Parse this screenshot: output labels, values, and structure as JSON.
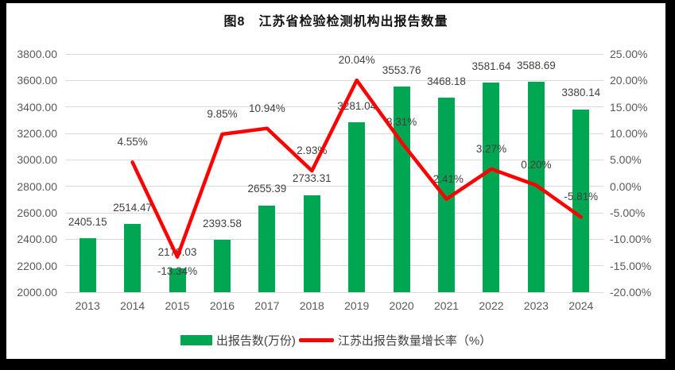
{
  "title": "图8　江苏省检验检测机构出报告数量",
  "colors": {
    "bar": "#00A651",
    "line": "#FE0000",
    "grid": "#D9D9D9",
    "axis_text": "#595959",
    "label_text": "#404040",
    "frame": "#000000"
  },
  "legend": {
    "items": [
      {
        "swatch": "bar",
        "label": "出报告数(万份)"
      },
      {
        "swatch": "line",
        "label": "江苏出报告数量增长率（%）"
      }
    ]
  },
  "chart_data": {
    "type": "combo-bar-line",
    "title": "图8　江苏省检验检测机构出报告数量",
    "categories": [
      "2013",
      "2014",
      "2015",
      "2016",
      "2017",
      "2018",
      "2019",
      "2020",
      "2021",
      "2022",
      "2023",
      "2024"
    ],
    "series": [
      {
        "name": "出报告数(万份)",
        "chart": "bar",
        "axis": "left",
        "values": [
          2405.15,
          2514.47,
          2179.03,
          2393.58,
          2655.39,
          2733.31,
          3281.04,
          3553.76,
          3468.18,
          3581.64,
          3588.69,
          3380.14
        ],
        "data_labels": [
          "2405.15",
          "2514.47",
          "2179.03",
          "2393.58",
          "2655.39",
          "2733.31",
          "3281.04",
          "3553.76",
          "3468.18",
          "3581.64",
          "3588.69",
          "3380.14"
        ]
      },
      {
        "name": "江苏出报告数量增长率（%）",
        "chart": "line",
        "axis": "right",
        "start_index": 1,
        "values": [
          4.55,
          -13.34,
          9.85,
          10.94,
          2.93,
          20.04,
          8.31,
          -2.41,
          3.27,
          0.2,
          -5.81
        ],
        "data_labels": [
          "4.55%",
          "-13.34%",
          "9.85%",
          "10.94%",
          "2.93%",
          "20.04%",
          "8.31%",
          "-2.41%",
          "3.27%",
          "0.20%",
          "-5.81%"
        ],
        "labels_below_point_indices": [
          1
        ]
      }
    ],
    "left_axis": {
      "min": 2000,
      "max": 3800,
      "step": 200,
      "tick_labels": [
        "3800.00",
        "3600.00",
        "3400.00",
        "3200.00",
        "3000.00",
        "2800.00",
        "2600.00",
        "2400.00",
        "2200.00",
        "2000.00"
      ]
    },
    "right_axis": {
      "min": -20,
      "max": 25,
      "step": 5,
      "tick_labels": [
        "25.00%",
        "20.00%",
        "15.00%",
        "10.00%",
        "5.00%",
        "0.00%",
        "-5.00%",
        "-10.00%",
        "-15.00%",
        "-20.00%"
      ]
    },
    "gridlines": "horizontal",
    "legend_position": "bottom"
  }
}
